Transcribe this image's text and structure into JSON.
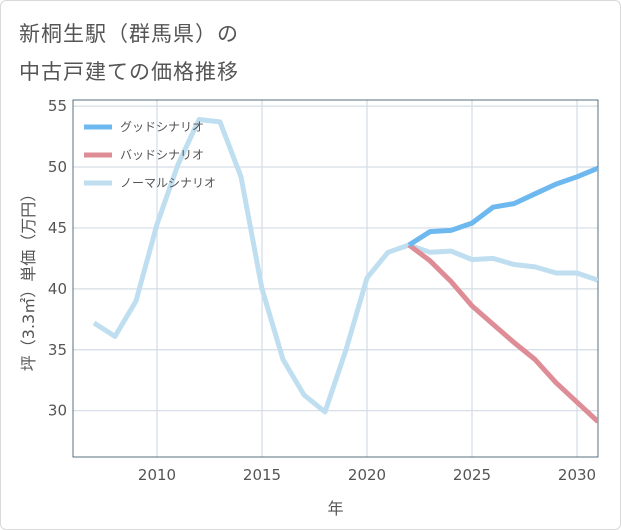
{
  "title_lines": [
    "新桐生駅（群馬県）の",
    "中古戸建ての価格推移"
  ],
  "chart_data": {
    "type": "line",
    "xlabel": "年",
    "ylabel": "坪（3.3㎡）単価（万円）",
    "xlim": [
      2006,
      2031
    ],
    "ylim": [
      26.2,
      55.5
    ],
    "x_ticks": [
      2010,
      2015,
      2020,
      2025,
      2030
    ],
    "y_ticks": [
      30,
      35,
      40,
      45,
      50,
      55
    ],
    "x_tick_labels": [
      "2010",
      "2015",
      "2020",
      "2025",
      "2030"
    ],
    "y_tick_labels": [
      "30",
      "35",
      "40",
      "45",
      "50",
      "55"
    ],
    "legend_position": "top-left",
    "grid": true,
    "series": [
      {
        "name": "グッドシナリオ",
        "color": "#6cb8ef",
        "points": [
          [
            2022,
            43.6
          ],
          [
            2023,
            44.7
          ],
          [
            2024,
            44.8
          ],
          [
            2025,
            45.4
          ],
          [
            2026,
            46.7
          ],
          [
            2027,
            47.0
          ],
          [
            2028,
            47.8
          ],
          [
            2029,
            48.6
          ],
          [
            2030,
            49.2
          ],
          [
            2031,
            49.9
          ]
        ]
      },
      {
        "name": "バッドシナリオ",
        "color": "#de8c96",
        "points": [
          [
            2022,
            43.6
          ],
          [
            2023,
            42.3
          ],
          [
            2024,
            40.6
          ],
          [
            2025,
            38.6
          ],
          [
            2026,
            37.1
          ],
          [
            2027,
            35.6
          ],
          [
            2028,
            34.2
          ],
          [
            2029,
            32.3
          ],
          [
            2030,
            30.7
          ],
          [
            2031,
            29.1
          ]
        ]
      },
      {
        "name": "ノーマルシナリオ",
        "color": "#bfdff0",
        "points": [
          [
            2007,
            37.2
          ],
          [
            2008,
            36.1
          ],
          [
            2009,
            39.0
          ],
          [
            2010,
            45.3
          ],
          [
            2011,
            50.2
          ],
          [
            2012,
            53.9
          ],
          [
            2013,
            53.7
          ],
          [
            2014,
            49.2
          ],
          [
            2015,
            40.0
          ],
          [
            2016,
            34.2
          ],
          [
            2017,
            31.3
          ],
          [
            2018,
            29.9
          ],
          [
            2019,
            35.0
          ],
          [
            2020,
            40.9
          ],
          [
            2021,
            43.0
          ],
          [
            2022,
            43.6
          ],
          [
            2023,
            43.0
          ],
          [
            2024,
            43.1
          ],
          [
            2025,
            42.4
          ],
          [
            2026,
            42.5
          ],
          [
            2027,
            42.0
          ],
          [
            2028,
            41.8
          ],
          [
            2029,
            41.3
          ],
          [
            2030,
            41.3
          ],
          [
            2031,
            40.7
          ]
        ]
      }
    ]
  }
}
